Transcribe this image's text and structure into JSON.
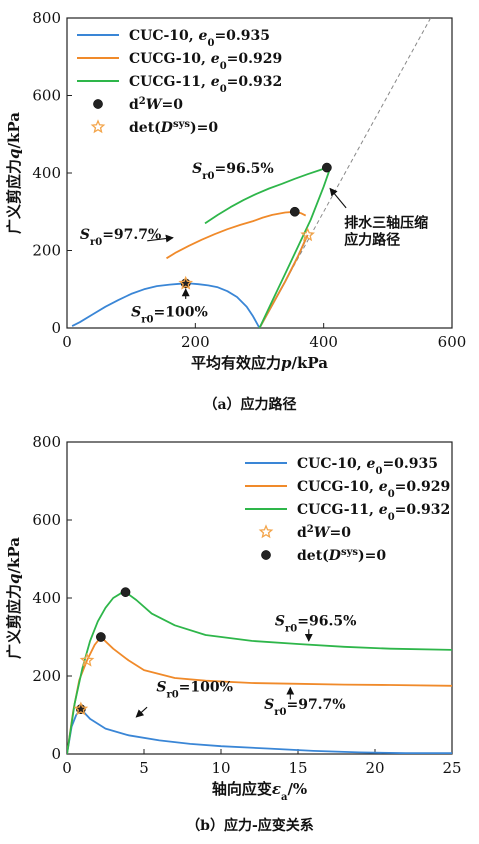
{
  "colors": {
    "cuc10": "#3a86d6",
    "cucg10": "#f08a2a",
    "cucg11": "#2eb64a",
    "marker_ball": "#222222",
    "marker_star": "#f3a54b",
    "dashed": "#888888"
  },
  "chart_data": [
    {
      "type": "line",
      "caption": "（a）应力路径",
      "xlabel": "平均有效应力p/kPa",
      "ylabel": "广义剪应力q/kPa",
      "xlim": [
        0,
        600
      ],
      "ylim": [
        0,
        800
      ],
      "xticks": [
        "0",
        "200",
        "400",
        "600"
      ],
      "yticks": [
        "0",
        "200",
        "400",
        "600",
        "800"
      ],
      "legend_position": "top-left",
      "legend": [
        {
          "label": "CUC-10, e0=0.935",
          "color": "cuc10",
          "kind": "line"
        },
        {
          "label": "CUCG-10, e0=0.929",
          "color": "cucg10",
          "kind": "line"
        },
        {
          "label": "CUCG-11, e0=0.932",
          "color": "cucg11",
          "kind": "line"
        },
        {
          "label": "d2W=0",
          "kind": "ball"
        },
        {
          "label": "det(Dsys)=0",
          "kind": "star"
        }
      ],
      "series": [
        {
          "color": "cuc10",
          "x": [
            300,
            290,
            280,
            265,
            250,
            235,
            220,
            205,
            190,
            175,
            160,
            140,
            120,
            100,
            80,
            60,
            40,
            20,
            8
          ],
          "y": [
            0,
            30,
            55,
            80,
            95,
            105,
            110,
            113,
            115,
            114,
            112,
            108,
            100,
            88,
            72,
            55,
            35,
            15,
            5
          ]
        },
        {
          "color": "cuc10",
          "x": [
            300,
            320,
            340,
            360,
            375
          ],
          "y": [
            0,
            60,
            120,
            185,
            240
          ]
        },
        {
          "color": "cucg10",
          "x": [
            155,
            170,
            190,
            210,
            230,
            250,
            270,
            290,
            305,
            320,
            340,
            355,
            365,
            372
          ],
          "y": [
            180,
            195,
            212,
            228,
            242,
            255,
            266,
            276,
            285,
            292,
            298,
            300,
            296,
            290
          ]
        },
        {
          "color": "cucg10",
          "x": [
            300,
            320,
            340,
            360,
            375
          ],
          "y": [
            0,
            60,
            120,
            185,
            240
          ]
        },
        {
          "color": "cucg11",
          "x": [
            215,
            235,
            255,
            275,
            295,
            315,
            335,
            355,
            375,
            395,
            405,
            410
          ],
          "y": [
            270,
            292,
            312,
            330,
            346,
            360,
            372,
            385,
            397,
            408,
            414,
            412
          ]
        },
        {
          "color": "cucg11",
          "x": [
            300,
            320,
            340,
            360,
            380,
            400,
            410
          ],
          "y": [
            0,
            70,
            140,
            210,
            280,
            365,
            412
          ]
        }
      ],
      "dashed_path": {
        "color": "dashed",
        "x": [
          300,
          570
        ],
        "y": [
          0,
          810
        ]
      },
      "markers": [
        {
          "kind": "ball",
          "x": 185,
          "y": 115
        },
        {
          "kind": "star",
          "x": 185,
          "y": 115
        },
        {
          "kind": "ball",
          "x": 355,
          "y": 300
        },
        {
          "kind": "star",
          "x": 375,
          "y": 240
        },
        {
          "kind": "ball",
          "x": 405,
          "y": 414
        }
      ],
      "annotations": [
        {
          "text": "Sr0=96.5%",
          "tx": 195,
          "ty": 400
        },
        {
          "text": "Sr0=97.7%",
          "tx": 20,
          "ty": 230,
          "arrow": [
            [
              125,
              225
            ],
            [
              165,
              233
            ]
          ]
        },
        {
          "text": "Sr0=100%",
          "tx": 100,
          "ty": 30,
          "arrow": [
            [
              185,
              75
            ],
            [
              185,
              100
            ]
          ]
        },
        {
          "text": "排水三轴压缩",
          "tx": 432,
          "ty": 260
        },
        {
          "text": "应力路径",
          "tx": 432,
          "ty": 215,
          "arrow": [
            [
              435,
              310
            ],
            [
              410,
              360
            ]
          ]
        }
      ]
    },
    {
      "type": "line",
      "caption": "（b）应力-应变关系",
      "xlabel": "轴向应变εa/%",
      "ylabel": "广义剪应力q/kPa",
      "xlim": [
        0,
        25
      ],
      "ylim": [
        0,
        800
      ],
      "xticks": [
        "0",
        "5",
        "10",
        "15",
        "20",
        "25"
      ],
      "yticks": [
        "0",
        "200",
        "400",
        "600",
        "800"
      ],
      "legend_position": "top-right",
      "legend": [
        {
          "label": "CUC-10, e0=0.935",
          "color": "cuc10",
          "kind": "line"
        },
        {
          "label": "CUCG-10, e0=0.929",
          "color": "cucg10",
          "kind": "line"
        },
        {
          "label": "CUCG-11, e0=0.932",
          "color": "cucg11",
          "kind": "line"
        },
        {
          "label": "d2W=0",
          "kind": "star"
        },
        {
          "label": "det(Dsys)=0",
          "kind": "ball"
        }
      ],
      "series": [
        {
          "color": "cuc10",
          "x": [
            0,
            0.3,
            0.6,
            0.9,
            1.5,
            2.5,
            4,
            6,
            8,
            10,
            13,
            16,
            19,
            22,
            25
          ],
          "y": [
            0,
            70,
            100,
            115,
            90,
            65,
            48,
            35,
            26,
            20,
            14,
            8,
            4,
            2,
            2
          ]
        },
        {
          "color": "cucg10",
          "x": [
            0,
            0.4,
            0.8,
            1.3,
            1.8,
            2.2,
            3,
            4,
            5,
            7,
            9,
            12,
            15,
            18,
            21,
            25
          ],
          "y": [
            0,
            110,
            190,
            240,
            280,
            300,
            270,
            240,
            215,
            195,
            188,
            182,
            180,
            178,
            177,
            175
          ]
        },
        {
          "color": "cucg11",
          "x": [
            0,
            0.5,
            1,
            1.5,
            2,
            2.5,
            3,
            3.5,
            3.8,
            4.5,
            5.5,
            7,
            9,
            12,
            15,
            18,
            21,
            25
          ],
          "y": [
            0,
            130,
            220,
            290,
            340,
            375,
            400,
            412,
            415,
            395,
            360,
            330,
            305,
            290,
            282,
            275,
            270,
            267
          ]
        }
      ],
      "markers": [
        {
          "kind": "ball",
          "x": 0.9,
          "y": 115
        },
        {
          "kind": "star",
          "x": 0.9,
          "y": 115
        },
        {
          "kind": "star",
          "x": 1.3,
          "y": 240
        },
        {
          "kind": "ball",
          "x": 2.2,
          "y": 300
        },
        {
          "kind": "ball",
          "x": 3.8,
          "y": 415
        }
      ],
      "annotations": [
        {
          "text": "Sr0=96.5%",
          "tx": 13.5,
          "ty": 330,
          "arrow": [
            [
              15.7,
              320
            ],
            [
              15.7,
              290
            ]
          ]
        },
        {
          "text": "Sr0=97.7%",
          "tx": 12.8,
          "ty": 115,
          "arrow": [
            [
              14.5,
              140
            ],
            [
              14.5,
              170
            ]
          ]
        },
        {
          "text": "Sr0=100%",
          "tx": 5.8,
          "ty": 160,
          "arrow": [
            [
              5.2,
              120
            ],
            [
              4.5,
              95
            ]
          ]
        }
      ]
    }
  ]
}
